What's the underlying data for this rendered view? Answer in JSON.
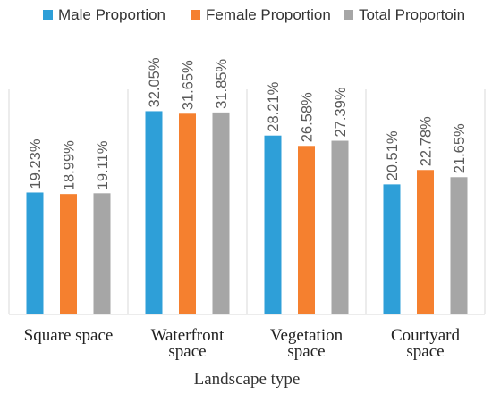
{
  "chart_data": {
    "type": "bar",
    "categories": [
      "Square space",
      "Waterfront space",
      "Vegetation space",
      "Courtyard space"
    ],
    "series": [
      {
        "name": "Male Proportion",
        "values": [
          19.23,
          32.05,
          28.21,
          20.51
        ],
        "labels": [
          "19.23%",
          "32.05%",
          "28.21%",
          "20.51%"
        ],
        "color": "#2e9fd8"
      },
      {
        "name": "Female Proportion",
        "values": [
          18.99,
          31.65,
          26.58,
          22.78
        ],
        "labels": [
          "18.99%",
          "31.65%",
          "26.58%",
          "22.78%"
        ],
        "color": "#f5802f"
      },
      {
        "name": "Total Proportoin",
        "values": [
          19.11,
          31.85,
          27.39,
          21.65
        ],
        "labels": [
          "19.11%",
          "31.85%",
          "27.39%",
          "21.65%"
        ],
        "color": "#a6a6a6"
      }
    ],
    "xlabel": "Landscape type",
    "ylabel": "",
    "ylim": [
      0,
      35
    ],
    "legend_position": "top",
    "grid": false
  }
}
